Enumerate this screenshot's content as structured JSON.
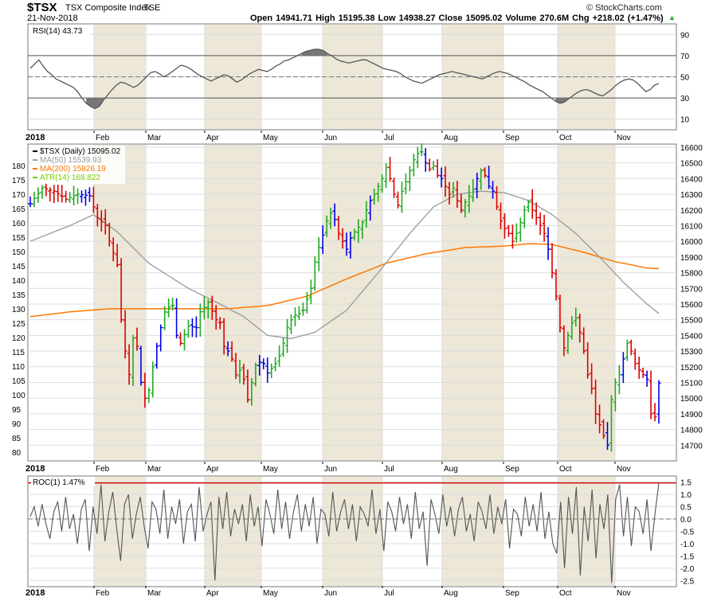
{
  "header": {
    "symbol": "$TSX",
    "name": "TSX Composite Index",
    "exchange": "TSE",
    "date": "21-Nov-2018",
    "ohlc_text": "Open 14941.71  High 15195.38  Low 14938.27  Close 15095.02  Volume 270.6M  Chg +218.02 (+1.47%)",
    "copyright": "© StockCharts.com",
    "change_arrow": "▲"
  },
  "colors": {
    "up": "#22aa22",
    "down": "#dd0000",
    "inside": "#0000ee",
    "ma50": "#999999",
    "ma200": "#ff7700",
    "atr": "#77cc00",
    "rsi_line": "#555555",
    "roc_line": "#555555",
    "band": "#ece7d7",
    "grid": "#dddddd"
  },
  "chart_data": [
    {
      "type": "line",
      "title": "RSI(14) 43.73",
      "legend": "RSI(14) 43.73",
      "ylim": [
        0,
        100
      ],
      "yticks": [
        "90",
        "70",
        "50",
        "30",
        "10"
      ],
      "ytick_values": [
        90,
        70,
        50,
        30,
        10
      ],
      "reference_lines": [
        70,
        30
      ],
      "dashed_line": 50,
      "xticks": [
        "2018",
        "Feb",
        "Mar",
        "Apr",
        "May",
        "Jun",
        "Jul",
        "Aug",
        "Sep",
        "Oct",
        "Nov"
      ],
      "x_start_label": "2018",
      "series": [
        {
          "name": "RSI(14)",
          "values": [
            58,
            62,
            66,
            60,
            55,
            52,
            48,
            46,
            44,
            42,
            40,
            36,
            30,
            25,
            22,
            20,
            22,
            28,
            33,
            38,
            42,
            45,
            44,
            42,
            40,
            42,
            46,
            50,
            54,
            55,
            53,
            50,
            52,
            55,
            58,
            61,
            60,
            58,
            55,
            52,
            50,
            48,
            46,
            48,
            50,
            52,
            51,
            48,
            45,
            47,
            50,
            53,
            55,
            57,
            56,
            55,
            57,
            60,
            62,
            65,
            66,
            68,
            70,
            72,
            74,
            75,
            76,
            76,
            75,
            72,
            70,
            67,
            65,
            64,
            63,
            64,
            65,
            66,
            66,
            64,
            62,
            60,
            58,
            57,
            56,
            55,
            53,
            50,
            48,
            46,
            45,
            44,
            46,
            48,
            50,
            52,
            53,
            54,
            55,
            54,
            53,
            52,
            51,
            50,
            49,
            48,
            50,
            52,
            54,
            55,
            54,
            53,
            51,
            49,
            47,
            45,
            42,
            40,
            38,
            36,
            33,
            30,
            27,
            25,
            26,
            29,
            32,
            35,
            37,
            38,
            37,
            35,
            33,
            32,
            35,
            38,
            42,
            45,
            47,
            48,
            47,
            44,
            40,
            36,
            38,
            42,
            43.73
          ]
        }
      ]
    },
    {
      "type": "ohlc",
      "title": "$TSX (Daily) 15095.02",
      "legend": [
        {
          "label": "$TSX (Daily) 15095.02",
          "color_key": "legend_black"
        },
        {
          "label": "MA(50) 15539.93",
          "color_key": "ma50"
        },
        {
          "label": "MA(200) 15826.19",
          "color_key": "ma200"
        },
        {
          "label": "ATR(14) 168.822",
          "color_key": "atr"
        }
      ],
      "ylim": [
        14600,
        16620
      ],
      "yticks_right": [
        "16600",
        "16500",
        "16400",
        "16300",
        "16200",
        "16100",
        "16000",
        "15900",
        "15800",
        "15700",
        "15600",
        "15500",
        "15400",
        "15300",
        "15200",
        "15100",
        "15000",
        "14900",
        "14800",
        "14700"
      ],
      "ytick_right_values": [
        16600,
        16500,
        16400,
        16300,
        16200,
        16100,
        16000,
        15900,
        15800,
        15700,
        15600,
        15500,
        15400,
        15300,
        15200,
        15100,
        15000,
        14900,
        14800,
        14700
      ],
      "atr_ylim": [
        77,
        187.5
      ],
      "yticks_left": [
        "180",
        "175",
        "170",
        "165",
        "160",
        "155",
        "150",
        "145",
        "140",
        "135",
        "130",
        "125",
        "120",
        "115",
        "110",
        "105",
        "100",
        "95",
        "90",
        "85",
        "80"
      ],
      "ytick_left_values": [
        180,
        175,
        170,
        165,
        160,
        155,
        150,
        145,
        140,
        135,
        130,
        125,
        120,
        115,
        110,
        105,
        100,
        95,
        90,
        85,
        80
      ],
      "xticks": [
        "2018",
        "Feb",
        "Mar",
        "Apr",
        "May",
        "Jun",
        "Jul",
        "Aug",
        "Sep",
        "Oct",
        "Nov"
      ],
      "x_start_label": "2018",
      "anchors_close": [
        [
          0,
          16240
        ],
        [
          3,
          16340
        ],
        [
          6,
          16320
        ],
        [
          9,
          16270
        ],
        [
          12,
          16300
        ],
        [
          15,
          16290
        ],
        [
          17,
          16150
        ],
        [
          19,
          16100
        ],
        [
          20,
          16000
        ],
        [
          22,
          15850
        ],
        [
          23,
          15500
        ],
        [
          24,
          15300
        ],
        [
          25,
          15150
        ],
        [
          26,
          15380
        ],
        [
          27,
          15330
        ],
        [
          28,
          15100
        ],
        [
          29,
          15000
        ],
        [
          30,
          15050
        ],
        [
          31,
          15200
        ],
        [
          32,
          15330
        ],
        [
          33,
          15450
        ],
        [
          34,
          15550
        ],
        [
          35,
          15580
        ],
        [
          36,
          15590
        ],
        [
          37,
          15400
        ],
        [
          38,
          15350
        ],
        [
          40,
          15460
        ],
        [
          42,
          15450
        ],
        [
          43,
          15550
        ],
        [
          45,
          15610
        ],
        [
          47,
          15500
        ],
        [
          48,
          15480
        ],
        [
          49,
          15330
        ],
        [
          50,
          15300
        ],
        [
          51,
          15250
        ],
        [
          52,
          15150
        ],
        [
          53,
          15180
        ],
        [
          54,
          15120
        ],
        [
          55,
          14990
        ],
        [
          56,
          15100
        ],
        [
          57,
          15210
        ],
        [
          58,
          15230
        ],
        [
          59,
          15220
        ],
        [
          60,
          15160
        ],
        [
          61,
          15190
        ],
        [
          62,
          15220
        ],
        [
          63,
          15270
        ],
        [
          64,
          15350
        ],
        [
          65,
          15450
        ],
        [
          66,
          15500
        ],
        [
          67,
          15530
        ],
        [
          68,
          15540
        ],
        [
          69,
          15560
        ],
        [
          70,
          15630
        ],
        [
          71,
          15700
        ],
        [
          72,
          15870
        ],
        [
          73,
          15960
        ],
        [
          74,
          16040
        ],
        [
          75,
          16130
        ],
        [
          76,
          16180
        ],
        [
          77,
          16140
        ],
        [
          78,
          16050
        ],
        [
          79,
          16000
        ],
        [
          80,
          15950
        ],
        [
          81,
          16020
        ],
        [
          82,
          16060
        ],
        [
          83,
          16090
        ],
        [
          84,
          16120
        ],
        [
          85,
          16200
        ],
        [
          86,
          16260
        ],
        [
          87,
          16300
        ],
        [
          88,
          16350
        ],
        [
          89,
          16400
        ],
        [
          90,
          16470
        ],
        [
          91,
          16400
        ],
        [
          92,
          16300
        ],
        [
          93,
          16230
        ],
        [
          94,
          16320
        ],
        [
          95,
          16380
        ],
        [
          96,
          16450
        ],
        [
          97,
          16520
        ],
        [
          98,
          16560
        ],
        [
          99,
          16570
        ],
        [
          100,
          16500
        ],
        [
          101,
          16460
        ],
        [
          102,
          16480
        ],
        [
          103,
          16420
        ],
        [
          104,
          16400
        ],
        [
          105,
          16350
        ],
        [
          106,
          16300
        ],
        [
          107,
          16340
        ],
        [
          108,
          16260
        ],
        [
          109,
          16200
        ],
        [
          110,
          16250
        ],
        [
          111,
          16290
        ],
        [
          112,
          16330
        ],
        [
          113,
          16400
        ],
        [
          114,
          16450
        ],
        [
          115,
          16420
        ],
        [
          116,
          16350
        ],
        [
          117,
          16320
        ],
        [
          118,
          16220
        ],
        [
          119,
          16130
        ],
        [
          120,
          16080
        ],
        [
          121,
          16050
        ],
        [
          122,
          16000
        ],
        [
          123,
          16050
        ],
        [
          124,
          16120
        ],
        [
          125,
          16200
        ],
        [
          126,
          16250
        ],
        [
          127,
          16200
        ],
        [
          128,
          16150
        ],
        [
          129,
          16100
        ],
        [
          130,
          16050
        ],
        [
          131,
          15950
        ],
        [
          132,
          15800
        ],
        [
          133,
          15650
        ],
        [
          134,
          15450
        ],
        [
          135,
          15320
        ],
        [
          136,
          15400
        ],
        [
          137,
          15480
        ],
        [
          138,
          15510
        ],
        [
          139,
          15420
        ],
        [
          140,
          15300
        ],
        [
          141,
          15150
        ],
        [
          142,
          15060
        ],
        [
          143,
          14900
        ],
        [
          144,
          14830
        ],
        [
          145,
          14760
        ],
        [
          146,
          14700
        ],
        [
          147,
          14990
        ],
        [
          148,
          15100
        ],
        [
          149,
          15150
        ],
        [
          150,
          15250
        ],
        [
          151,
          15350
        ],
        [
          152,
          15300
        ],
        [
          153,
          15220
        ],
        [
          154,
          15180
        ],
        [
          155,
          15150
        ],
        [
          156,
          15120
        ],
        [
          157,
          14900
        ],
        [
          158,
          14880
        ],
        [
          159,
          15095.02
        ]
      ],
      "ma50_anchors": [
        [
          0,
          16000
        ],
        [
          10,
          16100
        ],
        [
          16,
          16170
        ],
        [
          22,
          16060
        ],
        [
          30,
          15860
        ],
        [
          40,
          15700
        ],
        [
          48,
          15600
        ],
        [
          54,
          15520
        ],
        [
          60,
          15400
        ],
        [
          66,
          15380
        ],
        [
          72,
          15420
        ],
        [
          80,
          15560
        ],
        [
          88,
          15800
        ],
        [
          96,
          16050
        ],
        [
          102,
          16220
        ],
        [
          108,
          16300
        ],
        [
          114,
          16320
        ],
        [
          120,
          16310
        ],
        [
          126,
          16260
        ],
        [
          132,
          16170
        ],
        [
          138,
          16050
        ],
        [
          144,
          15900
        ],
        [
          150,
          15740
        ],
        [
          156,
          15600
        ],
        [
          159,
          15540
        ]
      ],
      "ma200_anchors": [
        [
          0,
          15520
        ],
        [
          10,
          15550
        ],
        [
          20,
          15570
        ],
        [
          30,
          15570
        ],
        [
          40,
          15570
        ],
        [
          50,
          15570
        ],
        [
          60,
          15590
        ],
        [
          70,
          15650
        ],
        [
          80,
          15760
        ],
        [
          90,
          15860
        ],
        [
          100,
          15920
        ],
        [
          110,
          15960
        ],
        [
          120,
          15970
        ],
        [
          126,
          15985
        ],
        [
          132,
          15980
        ],
        [
          140,
          15930
        ],
        [
          148,
          15870
        ],
        [
          156,
          15830
        ],
        [
          159,
          15826
        ]
      ],
      "series": [
        {
          "name": "MA(50)",
          "last": 15539.93
        },
        {
          "name": "MA(200)",
          "last": 15826.19
        },
        {
          "name": "ATR(14)",
          "last": 168.822
        },
        {
          "name": "$TSX Close",
          "last": 15095.02
        }
      ]
    },
    {
      "type": "line",
      "title": "ROC(1) 1.47%",
      "legend": "ROC(1) 1.47%",
      "ylim": [
        -2.75,
        1.75
      ],
      "yticks": [
        "1.5",
        "1.0",
        "0.5",
        "0.0",
        "-0.5",
        "-1.0",
        "-1.5",
        "-2.0",
        "-2.5"
      ],
      "ytick_values": [
        1.5,
        1.0,
        0.5,
        0.0,
        -0.5,
        -1.0,
        -1.5,
        -2.0,
        -2.5
      ],
      "reference_line": 1.47,
      "dashed_line": 0,
      "xticks": [
        "2018",
        "Feb",
        "Mar",
        "Apr",
        "May",
        "Jun",
        "Jul",
        "Aug",
        "Sep",
        "Oct",
        "Nov"
      ],
      "x_start_label": "2018",
      "series": [
        {
          "name": "ROC(1)",
          "values": [
            0.1,
            0.5,
            -0.3,
            0.6,
            -0.2,
            -0.8,
            0.3,
            0.7,
            -0.5,
            0.9,
            -0.4,
            0.2,
            -1.0,
            0.4,
            0.8,
            -1.3,
            0.5,
            -0.6,
            1.4,
            -0.9,
            0.3,
            1.1,
            -0.4,
            -1.7,
            0.6,
            1.0,
            -0.8,
            0.2,
            0.9,
            -0.3,
            -1.2,
            0.7,
            0.4,
            -0.6,
            1.2,
            -0.8,
            0.5,
            -0.2,
            0.8,
            -1.0,
            0.3,
            0.6,
            -0.9,
            1.3,
            -0.5,
            0.2,
            0.7,
            -2.5,
            0.9,
            -0.4,
            1.1,
            -0.7,
            0.4,
            -0.2,
            0.6,
            -0.9,
            1.0,
            -0.3,
            0.5,
            -1.1,
            0.8,
            0.2,
            -0.6,
            1.2,
            -0.4,
            0.7,
            -0.8,
            0.3,
            1.0,
            -0.5,
            0.6,
            -0.3,
            0.9,
            -1.0,
            0.4,
            0.2,
            -0.7,
            1.1,
            -0.5,
            0.3,
            0.8,
            -0.4,
            0.6,
            -0.9,
            0.5,
            0.2,
            -0.3,
            1.2,
            -0.6,
            0.4,
            -1.3,
            0.7,
            0.3,
            -0.5,
            0.9,
            -0.2,
            0.6,
            -0.8,
            1.1,
            -0.4,
            0.3,
            -1.9,
            0.8,
            0.2,
            -0.6,
            1.0,
            -0.3,
            0.5,
            -0.7,
            0.4,
            0.9,
            -0.5,
            0.2,
            -0.9,
            0.7,
            0.3,
            -0.4,
            1.0,
            -0.6,
            0.5,
            -0.2,
            0.8,
            -1.2,
            0.4,
            0.2,
            -0.7,
            0.9,
            -0.3,
            0.6,
            -0.5,
            1.1,
            -0.8,
            0.3,
            -1.0,
            -1.4,
            0.7,
            -2.0,
            0.9,
            -0.6,
            1.3,
            -2.3,
            0.5,
            -0.9,
            1.2,
            -1.6,
            0.6,
            -0.4,
            1.0,
            -2.6,
            0.8,
            1.4,
            -0.7,
            0.9,
            -1.1,
            0.5,
            0.3,
            -0.6,
            0.8,
            -1.3,
            0.2,
            1.47
          ]
        }
      ]
    }
  ]
}
